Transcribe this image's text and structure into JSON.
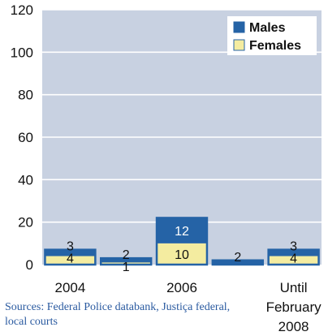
{
  "chart_data": {
    "type": "bar",
    "stacked": true,
    "categories": [
      "2004",
      "",
      "2006",
      "",
      "Until\nFebruary\n2008"
    ],
    "series": [
      {
        "name": "Females",
        "values": [
          4,
          1,
          10,
          0,
          4
        ],
        "color": "#f4eca0"
      },
      {
        "name": "Males",
        "values": [
          3,
          2,
          12,
          2,
          3
        ],
        "color": "#2563a6"
      }
    ],
    "data_labels": {
      "Females": [
        "4",
        "1",
        "10",
        "",
        "4"
      ],
      "Males": [
        "3",
        "2",
        "12",
        "2",
        "3"
      ]
    },
    "ylim": [
      0,
      120
    ],
    "yticks": [
      "0",
      "20",
      "40",
      "60",
      "80",
      "100",
      "120"
    ],
    "grid": true,
    "legend": "top-right",
    "plot_background": "#c8d1e1"
  },
  "source_note": "Sources: Federal Police databank, Justiça federal, local courts"
}
